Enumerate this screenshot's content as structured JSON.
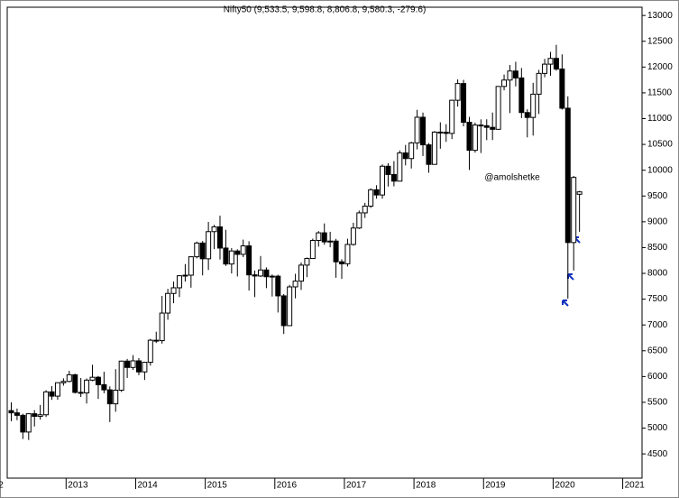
{
  "chart_data": {
    "type": "candlestick",
    "title": "Nifty50 (9,533.5, 9,598.8, 8,806.8, 9,580.3, -279.6)",
    "annotation": "@amolshetke",
    "annotation_color": "#0000cc",
    "up_color": "#ffffff",
    "down_color": "#000000",
    "open": [
      5339,
      5296,
      5248,
      4924,
      5279,
      5229,
      5259,
      5703,
      5620,
      5880,
      5905,
      6035,
      5693,
      5683,
      5930,
      5986,
      5842,
      5742,
      5471,
      5735,
      6299,
      6176,
      6304,
      6090,
      6277,
      6704,
      6696,
      7230,
      7611,
      7721,
      7954,
      7965,
      8322,
      8588,
      8283,
      8809,
      8902,
      8491,
      8182,
      8434,
      8369,
      8533,
      7971,
      7949,
      8066,
      7935,
      7946,
      7564,
      6987,
      7738,
      7850,
      8160,
      8288,
      8639,
      8786,
      8611,
      8626,
      8224,
      8186,
      8561,
      8879,
      9173,
      9304,
      9621,
      9520,
      10077,
      9917,
      9788,
      10335,
      10226,
      10530,
      11027,
      10492,
      10113,
      10739,
      10736,
      10714,
      11356,
      11680,
      10930,
      10386,
      10876,
      10862,
      10831,
      10793,
      11624,
      11748,
      11923,
      11789,
      11118,
      11023,
      11474,
      11877,
      12056,
      12168,
      11962,
      11202,
      8598,
      9533.5
    ],
    "high": [
      5499,
      5379,
      5279,
      5286,
      5349,
      5449,
      5735,
      5815,
      5885,
      5965,
      6111,
      6053,
      5971,
      5963,
      6229,
      6011,
      6093,
      5809,
      6142,
      6309,
      6342,
      6415,
      6358,
      6282,
      6730,
      6869,
      7563,
      7700,
      7841,
      7968,
      8180,
      8331,
      8617,
      8627,
      8997,
      8941,
      9119,
      8845,
      8490,
      8467,
      8655,
      8622,
      8055,
      8337,
      8116,
      7979,
      7973,
      7600,
      7777,
      7992,
      8213,
      8308,
      8674,
      8819,
      8968,
      8806,
      8669,
      8274,
      8672,
      8982,
      9218,
      9367,
      9649,
      9709,
      10114,
      10137,
      10178,
      10384,
      10490,
      10552,
      11171,
      11117,
      10525,
      10759,
      10929,
      10893,
      11366,
      11760,
      11751,
      11035,
      10922,
      10985,
      10987,
      11118,
      11630,
      11856,
      12041,
      12103,
      11982,
      11181,
      11694,
      11945,
      12158,
      12294,
      12430,
      12246,
      11433,
      9889,
      9598.8
    ],
    "low": [
      5135,
      5154,
      4789,
      4770,
      5032,
      5164,
      5215,
      5548,
      5549,
      5823,
      5888,
      5671,
      5604,
      5477,
      5910,
      5566,
      5676,
      5118,
      5318,
      5701,
      5972,
      6129,
      6027,
      5933,
      6212,
      6650,
      6638,
      7100,
      7422,
      7540,
      7841,
      7723,
      8290,
      7961,
      8066,
      8470,
      8269,
      8144,
      7997,
      7940,
      8315,
      7667,
      7540,
      7930,
      7714,
      7551,
      7241,
      6825,
      6987,
      7516,
      7678,
      7927,
      8287,
      8518,
      8555,
      8506,
      7916,
      7893,
      8133,
      8537,
      8860,
      9075,
      9269,
      9448,
      9448,
      9685,
      9687,
      9831,
      10094,
      10033,
      10404,
      10276,
      9951,
      10111,
      10417,
      10550,
      10604,
      11234,
      10850,
      10005,
      10341,
      10333,
      10583,
      10585,
      10785,
      11549,
      11108,
      11625,
      11010,
      10637,
      10671,
      11090,
      11802,
      11832,
      11929,
      11175,
      7511,
      8055,
      8806.8
    ],
    "close": [
      5296,
      5248,
      4924,
      5279,
      5229,
      5259,
      5703,
      5620,
      5880,
      5905,
      6035,
      5693,
      5683,
      5930,
      5986,
      5842,
      5742,
      5471,
      5735,
      6299,
      6176,
      6304,
      6090,
      6277,
      6704,
      6696,
      7230,
      7611,
      7721,
      7954,
      7965,
      8322,
      8588,
      8283,
      8809,
      8902,
      8491,
      8182,
      8434,
      8369,
      8533,
      7971,
      7949,
      8066,
      7935,
      7946,
      7564,
      6987,
      7738,
      7850,
      8160,
      8288,
      8639,
      8786,
      8611,
      8626,
      8224,
      8186,
      8561,
      8879,
      9173,
      9304,
      9621,
      9520,
      10077,
      9917,
      9788,
      10335,
      10226,
      10530,
      11027,
      10492,
      10113,
      10739,
      10736,
      10714,
      11356,
      11680,
      10930,
      10386,
      10876,
      10862,
      10831,
      10793,
      11624,
      11748,
      11923,
      11789,
      11118,
      11023,
      11474,
      11877,
      12056,
      12168,
      11962,
      11202,
      8598,
      9860,
      9580.3
    ],
    "ylim": [
      4030,
      13160
    ],
    "yticks": [
      4500,
      5000,
      5500,
      6000,
      6500,
      7000,
      7500,
      8000,
      8500,
      9000,
      9500,
      10000,
      10500,
      11000,
      11500,
      12000,
      12500,
      13000
    ],
    "xticks": [
      {
        "value": -2,
        "label": "2"
      },
      {
        "value": 10,
        "label": "2013"
      },
      {
        "value": 22,
        "label": "2014"
      },
      {
        "value": 34,
        "label": "2015"
      },
      {
        "value": 46,
        "label": "2016"
      },
      {
        "value": 58,
        "label": "2017"
      },
      {
        "value": 70,
        "label": "2018"
      },
      {
        "value": 82,
        "label": "2019"
      },
      {
        "value": 94,
        "label": "2020"
      },
      {
        "value": 106,
        "label": "2021"
      }
    ]
  }
}
